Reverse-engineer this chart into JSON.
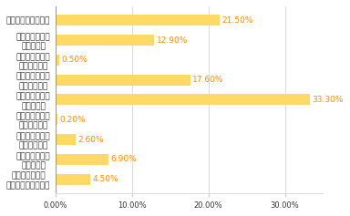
{
  "categories": [
    "さらに好きになった",
    "好きだったが、\n変わらない",
    "好きだったが、\n嫌いになった",
    "普通だったが、\n好きになった",
    "普通だったが、\n変わらない",
    "普通だったが、\n嫌いになった",
    "嫌いだったが、\n好きになった",
    "嫌いだったが、\n変わらない",
    "嫌いだったが、\nさらに嫌いになった"
  ],
  "values": [
    21.5,
    12.9,
    0.5,
    17.6,
    33.3,
    0.2,
    2.6,
    6.9,
    4.5
  ],
  "bar_color": "#FFD966",
  "label_color": "#FF8C00",
  "text_color": "#333333",
  "background_color": "#FFFFFF",
  "xlim": [
    0,
    35
  ],
  "xticks": [
    0,
    10,
    20,
    30
  ],
  "xticklabels": [
    "0.00%",
    "10.00%",
    "20.00%",
    "30.00%"
  ],
  "bar_height": 0.55,
  "title_fontsize": 7,
  "label_fontsize": 6.5,
  "value_fontsize": 6.5,
  "tick_fontsize": 6
}
